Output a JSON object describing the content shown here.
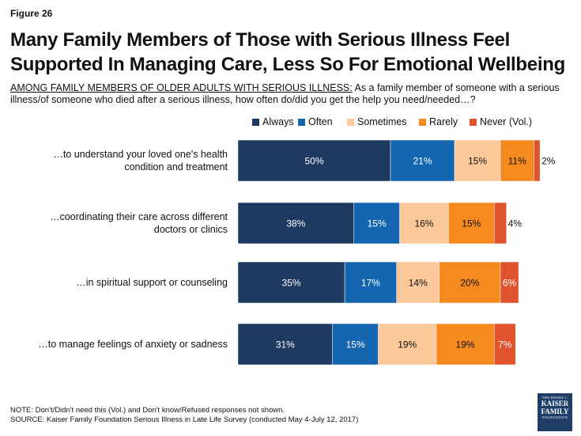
{
  "figure_label": "Figure 26",
  "title_line1": "Many Family Members of Those with Serious Illness Feel",
  "title_line2": "Supported In Managing Care, Less So For Emotional Wellbeing",
  "subtitle_lead": "AMONG FAMILY MEMBERS OF OLDER ADULTS WITH SERIOUS ILLNESS:",
  "subtitle_rest": " As a family member of someone with a serious illness/of someone who died after a serious illness, how often do/did you get the help you need/needed…?",
  "colors": {
    "always": "#1e3a60",
    "often": "#1566b0",
    "sometimes": "#fbc89a",
    "rarely": "#f58a1f",
    "never": "#e0532c"
  },
  "chart_data": {
    "type": "bar",
    "orientation": "horizontal",
    "stacked": true,
    "categories": [
      [
        "…to understand your loved one's health",
        "condition and treatment"
      ],
      [
        "…coordinating their care across different",
        "doctors or clinics"
      ],
      [
        "…in spiritual support or counseling"
      ],
      [
        "…to manage feelings of anxiety or sadness"
      ]
    ],
    "series": [
      {
        "name": "Always",
        "values": [
          50,
          38,
          35,
          31
        ]
      },
      {
        "name": "Often",
        "values": [
          21,
          15,
          17,
          15
        ]
      },
      {
        "name": "Sometimes",
        "values": [
          15,
          16,
          14,
          19
        ]
      },
      {
        "name": "Rarely",
        "values": [
          11,
          15,
          20,
          19
        ]
      },
      {
        "name": "Never (Vol.)",
        "values": [
          2,
          4,
          6,
          7
        ]
      }
    ],
    "value_suffix": "%",
    "xlim": [
      0,
      100
    ],
    "legend_position": "top"
  },
  "notes": {
    "note": "NOTE: Don't/Didn't need this (Vol.) and Don't know/Refused responses not shown.",
    "source": "SOURCE: Kaiser Family Foundation Serious Illness in Late Life Survey (conducted May 4-July 12, 2017)"
  },
  "logo": {
    "line1": "THE HENRY J.",
    "line2a": "KAISER",
    "line2b": "FAMILY",
    "line3": "FOUNDATION"
  }
}
